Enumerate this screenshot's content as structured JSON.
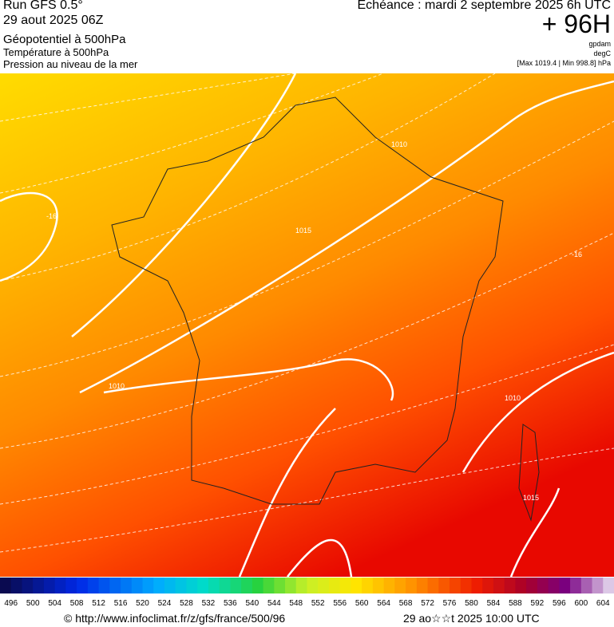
{
  "header": {
    "left": [
      "Run GFS 0.5°",
      "29 aout 2025 06Z",
      "Géopotentiel à 500hPa",
      "Température à 500hPa",
      "Pression au niveau de la mer"
    ],
    "forecast": "Echéance : mardi 2 septembre 2025 6h UTC",
    "lead": "+ 96H",
    "units": [
      "gpdam",
      "degC",
      "[Max 1019.4 | Min 998.8] hPa"
    ]
  },
  "map": {
    "contour_labels": [
      "-16",
      "1010",
      "1015",
      "1010",
      "-16",
      "1010",
      "1015"
    ]
  },
  "scale": {
    "labels": [
      "496",
      "500",
      "504",
      "508",
      "512",
      "516",
      "520",
      "524",
      "528",
      "532",
      "536",
      "540",
      "544",
      "548",
      "552",
      "556",
      "560",
      "564",
      "568",
      "572",
      "576",
      "580",
      "584",
      "588",
      "592",
      "596",
      "600",
      "604"
    ]
  },
  "footer": {
    "source": "© http://www.infoclimat.fr/z/gfs/france/500/96",
    "timestamp": "29 ao☆☆t 2025 10:00 UTC"
  }
}
